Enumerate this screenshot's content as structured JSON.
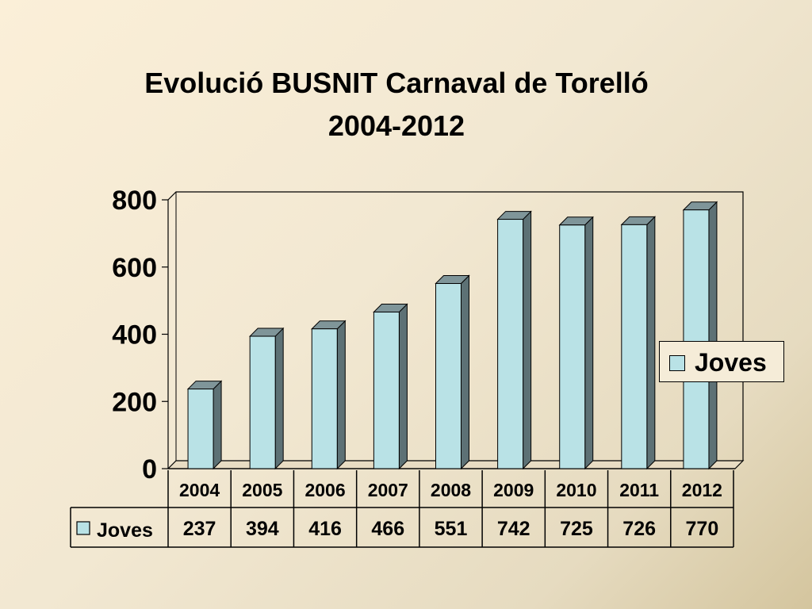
{
  "slide": {
    "title_line1": "Evolució BUSNIT Carnaval de Torelló",
    "title_line2": "2004-2012"
  },
  "chart_data": {
    "type": "bar",
    "style": "3d-column",
    "title": "Evolució BUSNIT Carnaval de Torelló 2004-2012",
    "categories": [
      "2004",
      "2005",
      "2006",
      "2007",
      "2008",
      "2009",
      "2010",
      "2011",
      "2012"
    ],
    "series": [
      {
        "name": "Joves",
        "values": [
          237,
          394,
          416,
          466,
          551,
          742,
          725,
          726,
          770
        ]
      }
    ],
    "yticks": [
      "0",
      "200",
      "400",
      "600",
      "800"
    ],
    "ylim": [
      0,
      800
    ],
    "legend": "right",
    "data_table": true,
    "colors": {
      "bar_face": "#b9e2e6",
      "bar_side": "#5d7175",
      "bar_top": "#7f9599"
    }
  }
}
